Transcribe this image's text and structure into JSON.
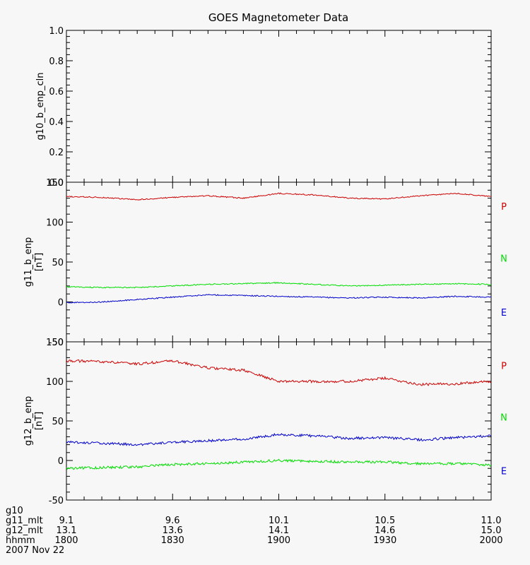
{
  "chart_data": [
    {
      "type": "line",
      "title": "GOES Magnetometer Data",
      "ylabel": "g10_b_enp_cln",
      "ylim": [
        0.0,
        1.0
      ],
      "yticks": [
        "0.0",
        "0.2",
        "0.4",
        "0.6",
        "0.8",
        "1.0"
      ],
      "series": []
    },
    {
      "type": "line",
      "ylabel": "g11_b_enp",
      "yunit": "[nT]",
      "ylim": [
        -50,
        150
      ],
      "yticks": [
        "-50",
        "0",
        "50",
        "100",
        "150"
      ],
      "x_minutes": [
        0,
        10,
        20,
        30,
        40,
        50,
        60,
        70,
        80,
        90,
        100,
        110,
        120
      ],
      "series": [
        {
          "name": "P",
          "color": "#cc0000",
          "values": [
            132,
            131,
            128,
            131,
            133,
            130,
            136,
            134,
            130,
            129,
            133,
            136,
            132
          ]
        },
        {
          "name": "N",
          "color": "#00dd00",
          "values": [
            19,
            18,
            18,
            20,
            22,
            23,
            24,
            22,
            20,
            21,
            22,
            23,
            22
          ]
        },
        {
          "name": "E",
          "color": "#0000cc",
          "values": [
            -1,
            0,
            3,
            6,
            9,
            8,
            7,
            6,
            5,
            6,
            5,
            7,
            6
          ]
        }
      ]
    },
    {
      "type": "line",
      "ylabel": "g12_b_enp",
      "yunit": "[nT]",
      "ylim": [
        -50,
        150
      ],
      "yticks": [
        "-50",
        "0",
        "50",
        "100",
        "150"
      ],
      "x_minutes": [
        0,
        10,
        20,
        30,
        40,
        50,
        60,
        70,
        80,
        90,
        100,
        110,
        120
      ],
      "series": [
        {
          "name": "P",
          "color": "#cc0000",
          "values": [
            126,
            125,
            122,
            126,
            117,
            114,
            100,
            100,
            100,
            104,
            96,
            97,
            100
          ]
        },
        {
          "name": "N",
          "color": "#00dd00",
          "values": [
            -10,
            -9,
            -8,
            -5,
            -4,
            -2,
            0,
            -1,
            -2,
            -2,
            -4,
            -4,
            -6
          ]
        },
        {
          "name": "E",
          "color": "#0000cc",
          "values": [
            23,
            22,
            20,
            23,
            25,
            27,
            33,
            31,
            28,
            29,
            26,
            29,
            31
          ]
        }
      ]
    }
  ],
  "x_axis": {
    "row_labels": [
      "g10",
      "g11_mlt",
      "g12_mlt",
      "hhmm"
    ],
    "ticks": [
      {
        "g11_mlt": "9.1",
        "g12_mlt": "13.1",
        "hhmm": "1800"
      },
      {
        "g11_mlt": "9.6",
        "g12_mlt": "13.6",
        "hhmm": "1830"
      },
      {
        "g11_mlt": "10.1",
        "g12_mlt": "14.1",
        "hhmm": "1900"
      },
      {
        "g11_mlt": "10.5",
        "g12_mlt": "14.6",
        "hhmm": "1930"
      },
      {
        "g11_mlt": "11.0",
        "g12_mlt": "15.0",
        "hhmm": "2000"
      }
    ],
    "date": "2007 Nov 22"
  }
}
